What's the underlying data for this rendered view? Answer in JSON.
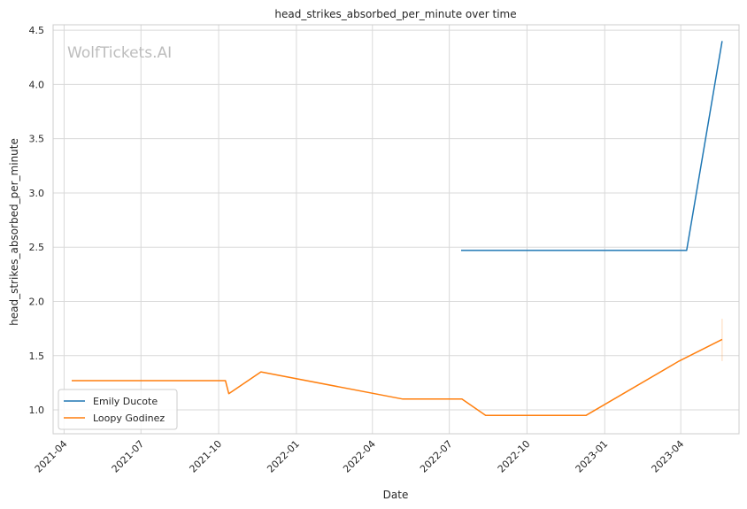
{
  "chart_data": {
    "type": "line",
    "title": "head_strikes_absorbed_per_minute over time",
    "xlabel": "Date",
    "ylabel": "head_strikes_absorbed_per_minute",
    "x_ticks": [
      "2021-04",
      "2021-07",
      "2021-10",
      "2022-01",
      "2022-04",
      "2022-07",
      "2022-10",
      "2023-01",
      "2023-04"
    ],
    "y_ticks": [
      "1.0",
      "1.5",
      "2.0",
      "2.5",
      "3.0",
      "3.5",
      "4.0",
      "4.5"
    ],
    "xlim": [
      "2021-03-19",
      "2023-06-09"
    ],
    "ylim": [
      0.78,
      4.55
    ],
    "grid": true,
    "legend_position": "lower-left",
    "watermark": "WolfTickets.AI",
    "series": [
      {
        "name": "Emily Ducote",
        "color": "#1f77b4",
        "points": [
          {
            "x": "2022-07-15",
            "y": 2.47
          },
          {
            "x": "2023-04-08",
            "y": 2.47
          },
          {
            "x": "2023-05-20",
            "y": 4.4
          }
        ]
      },
      {
        "name": "Loopy Godinez",
        "color": "#ff7f0e",
        "points": [
          {
            "x": "2021-04-10",
            "y": 1.27
          },
          {
            "x": "2021-10-09",
            "y": 1.27
          },
          {
            "x": "2021-10-13",
            "y": 1.15
          },
          {
            "x": "2021-11-20",
            "y": 1.35
          },
          {
            "x": "2022-05-07",
            "y": 1.1
          },
          {
            "x": "2022-07-16",
            "y": 1.1
          },
          {
            "x": "2022-08-13",
            "y": 0.95
          },
          {
            "x": "2022-12-10",
            "y": 0.95
          },
          {
            "x": "2023-03-30",
            "y": 1.45
          },
          {
            "x": "2023-05-20",
            "y": 1.65
          }
        ],
        "error_band_last": [
          1.45,
          1.84
        ]
      }
    ]
  }
}
